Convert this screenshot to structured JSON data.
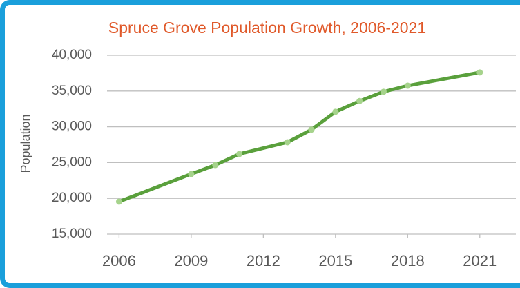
{
  "chart_data": {
    "type": "line",
    "title": "Spruce Grove Population Growth, 2006-2021",
    "y_label": "Population",
    "x": [
      2006,
      2009,
      2010,
      2011,
      2013,
      2014,
      2015,
      2016,
      2017,
      2018,
      2021
    ],
    "series": [
      {
        "name": "Population",
        "color": "#5aa03c",
        "marker_color": "#a6d38c",
        "values": [
          19540,
          23400,
          24650,
          26200,
          27840,
          29600,
          32100,
          33600,
          34900,
          35750,
          37600
        ]
      }
    ],
    "xlim": [
      2005.5,
      2022.5
    ],
    "xticks": [
      2006,
      2009,
      2012,
      2015,
      2018,
      2021
    ],
    "ylim": [
      15000,
      40000
    ],
    "yticks": [
      {
        "value": 15000,
        "label": "15,000"
      },
      {
        "value": 20000,
        "label": "20,000"
      },
      {
        "value": 25000,
        "label": "25,000"
      },
      {
        "value": 30000,
        "label": "30,000"
      },
      {
        "value": 35000,
        "label": "35,000"
      },
      {
        "value": 40000,
        "label": "40,000"
      }
    ],
    "grid": true
  }
}
